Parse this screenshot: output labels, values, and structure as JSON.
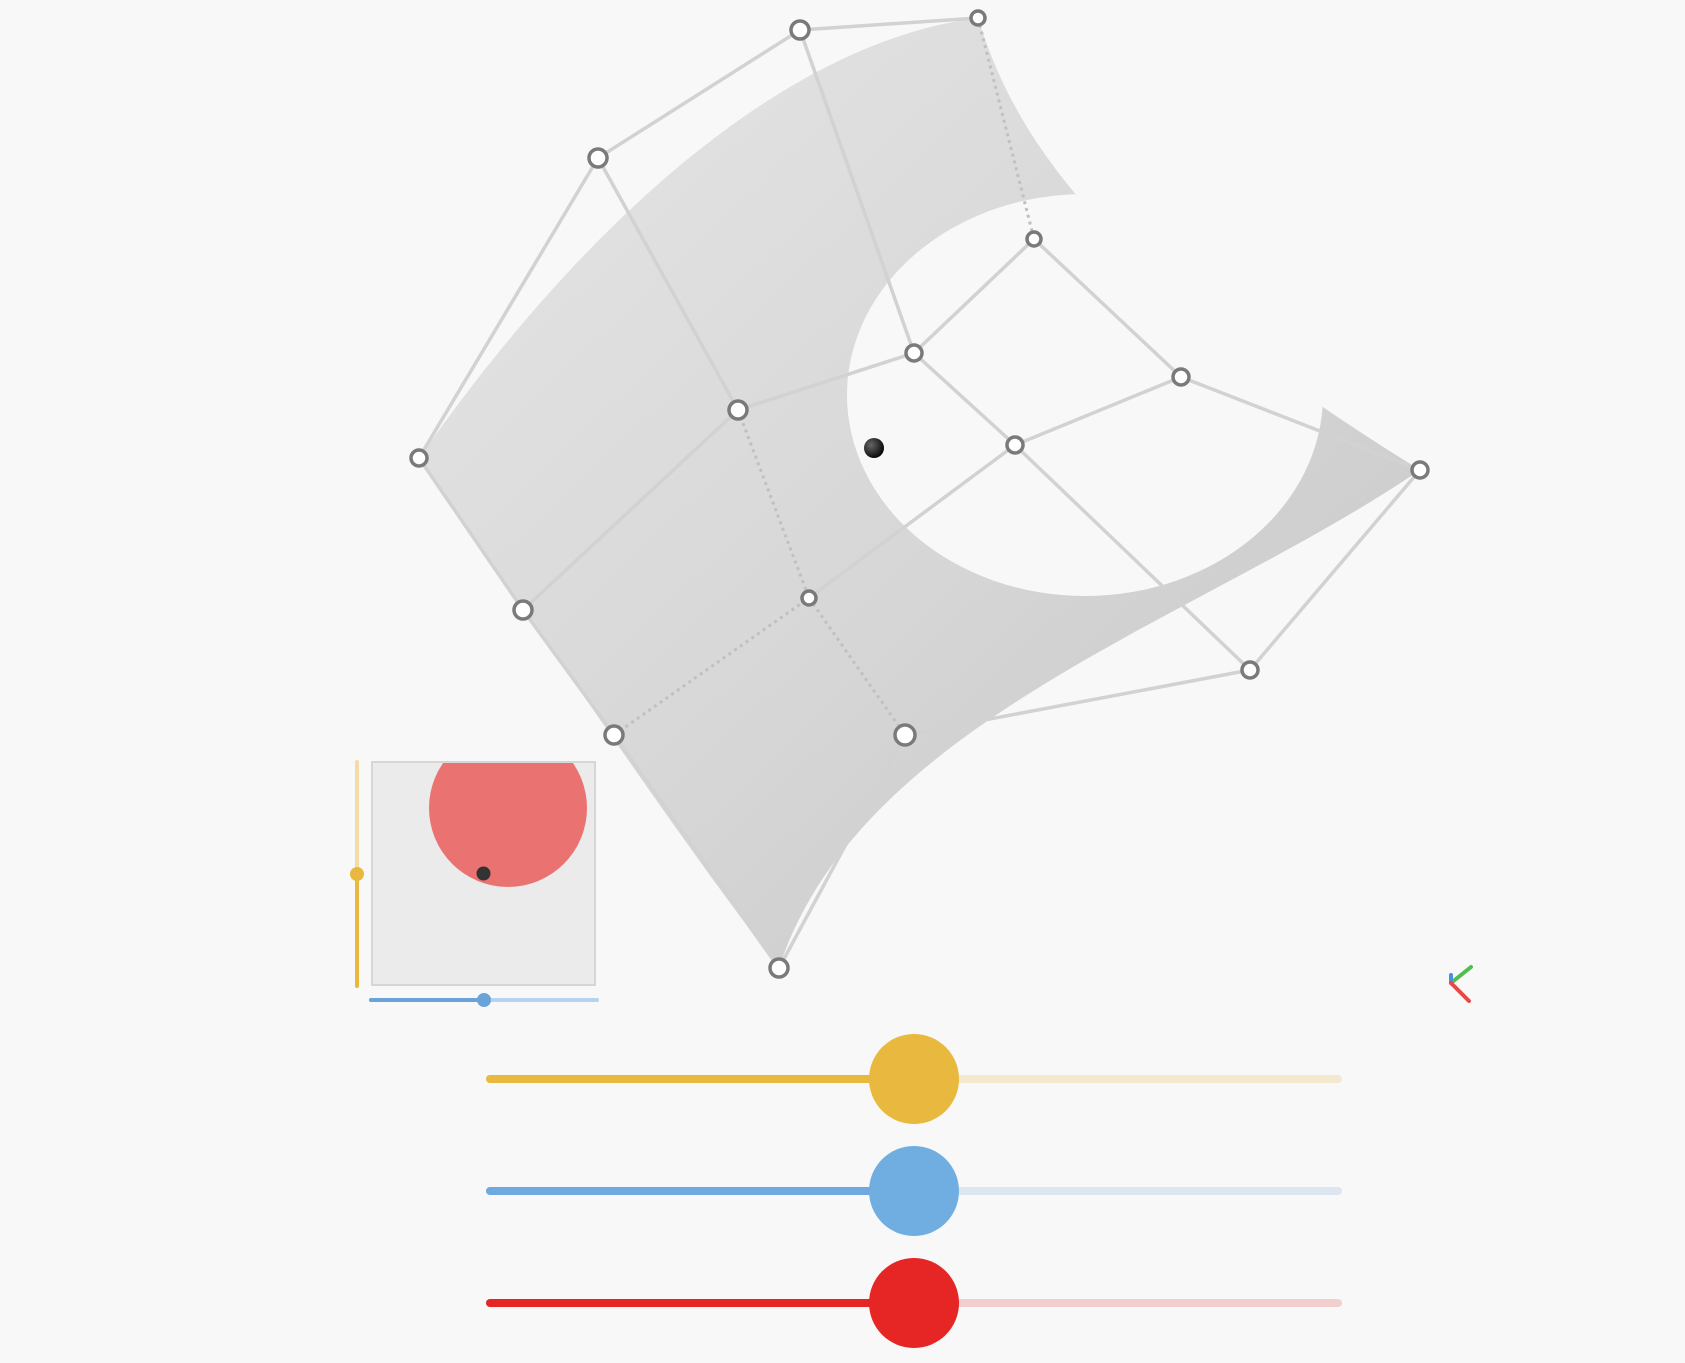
{
  "colors": {
    "background": "#f8f8f8",
    "surface": "#cfcfcf",
    "control_point_stroke": "#7a7a7a",
    "control_net": "#cccccc",
    "yellow": "#e8b93e",
    "blue": "#6aa3d8",
    "red": "#e62525",
    "uv_disc": "#ea7372"
  },
  "control_points": [
    {
      "id": "p00"
    },
    {
      "id": "p01"
    },
    {
      "id": "p02"
    },
    {
      "id": "p03"
    },
    {
      "id": "p10"
    },
    {
      "id": "p11"
    },
    {
      "id": "p12"
    },
    {
      "id": "p13"
    },
    {
      "id": "p20"
    },
    {
      "id": "p21"
    },
    {
      "id": "p22"
    },
    {
      "id": "p23"
    },
    {
      "id": "p30"
    },
    {
      "id": "p31"
    },
    {
      "id": "p32"
    },
    {
      "id": "p33"
    }
  ],
  "uv_panel": {
    "u_value": 0.5,
    "v_value": 0.5,
    "disc_icon": "trim-disc"
  },
  "sliders": [
    {
      "name": "yellow-slider",
      "color": "yellow",
      "value": 0.5
    },
    {
      "name": "blue-slider",
      "color": "blue",
      "value": 0.5
    },
    {
      "name": "red-slider",
      "color": "red",
      "value": 0.5
    }
  ],
  "axes_gizmo": {
    "icon": "axes-gizmo-icon",
    "colors": [
      "#4fbf4f",
      "#4a90e2",
      "#e64a4a"
    ]
  }
}
